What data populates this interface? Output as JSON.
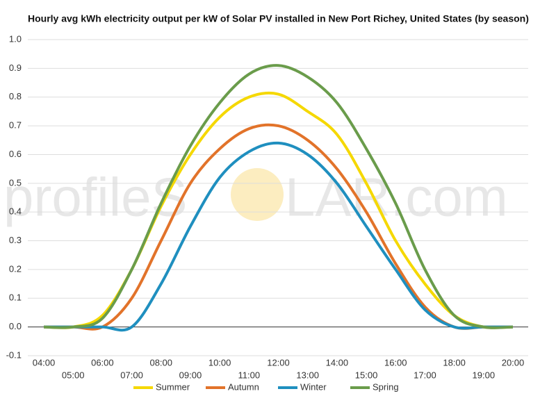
{
  "chart_data": {
    "type": "line",
    "title": "Hourly avg kWh electricity output per kW of Solar PV installed in New Port Richey, United States (by season)",
    "watermark": [
      "profileS",
      "LAR.com"
    ],
    "x": [
      "04:00",
      "05:00",
      "06:00",
      "07:00",
      "08:00",
      "09:00",
      "10:00",
      "11:00",
      "12:00",
      "13:00",
      "14:00",
      "15:00",
      "16:00",
      "17:00",
      "18:00",
      "19:00",
      "20:00"
    ],
    "series": [
      {
        "name": "Summer",
        "color": "#f5d800",
        "values": [
          0,
          0,
          0.04,
          0.2,
          0.42,
          0.6,
          0.73,
          0.8,
          0.81,
          0.75,
          0.67,
          0.5,
          0.3,
          0.15,
          0.04,
          0,
          0
        ]
      },
      {
        "name": "Autumn",
        "color": "#e2732a",
        "values": [
          0,
          0,
          0,
          0.1,
          0.3,
          0.5,
          0.62,
          0.69,
          0.7,
          0.65,
          0.55,
          0.4,
          0.22,
          0.07,
          0,
          0,
          0
        ]
      },
      {
        "name": "Winter",
        "color": "#1f8fbf",
        "values": [
          0,
          0,
          0,
          0,
          0.15,
          0.35,
          0.52,
          0.61,
          0.64,
          0.6,
          0.5,
          0.35,
          0.2,
          0.06,
          0,
          0,
          0
        ]
      },
      {
        "name": "Spring",
        "color": "#6a9c4b",
        "values": [
          0,
          0,
          0.03,
          0.2,
          0.43,
          0.63,
          0.78,
          0.88,
          0.91,
          0.87,
          0.78,
          0.62,
          0.43,
          0.2,
          0.04,
          0,
          0
        ]
      }
    ],
    "ylim": [
      -0.1,
      1.0
    ],
    "yticks": [
      {
        "value": -0.1,
        "label": "-0.1"
      },
      {
        "value": 0,
        "label": "0.0"
      },
      0.1,
      0.2,
      0.3,
      0.4,
      0.5,
      0.6,
      0.7,
      0.8,
      0.9,
      {
        "value": 1,
        "label": "1.0"
      }
    ],
    "grid": true,
    "legend": "bottom"
  }
}
